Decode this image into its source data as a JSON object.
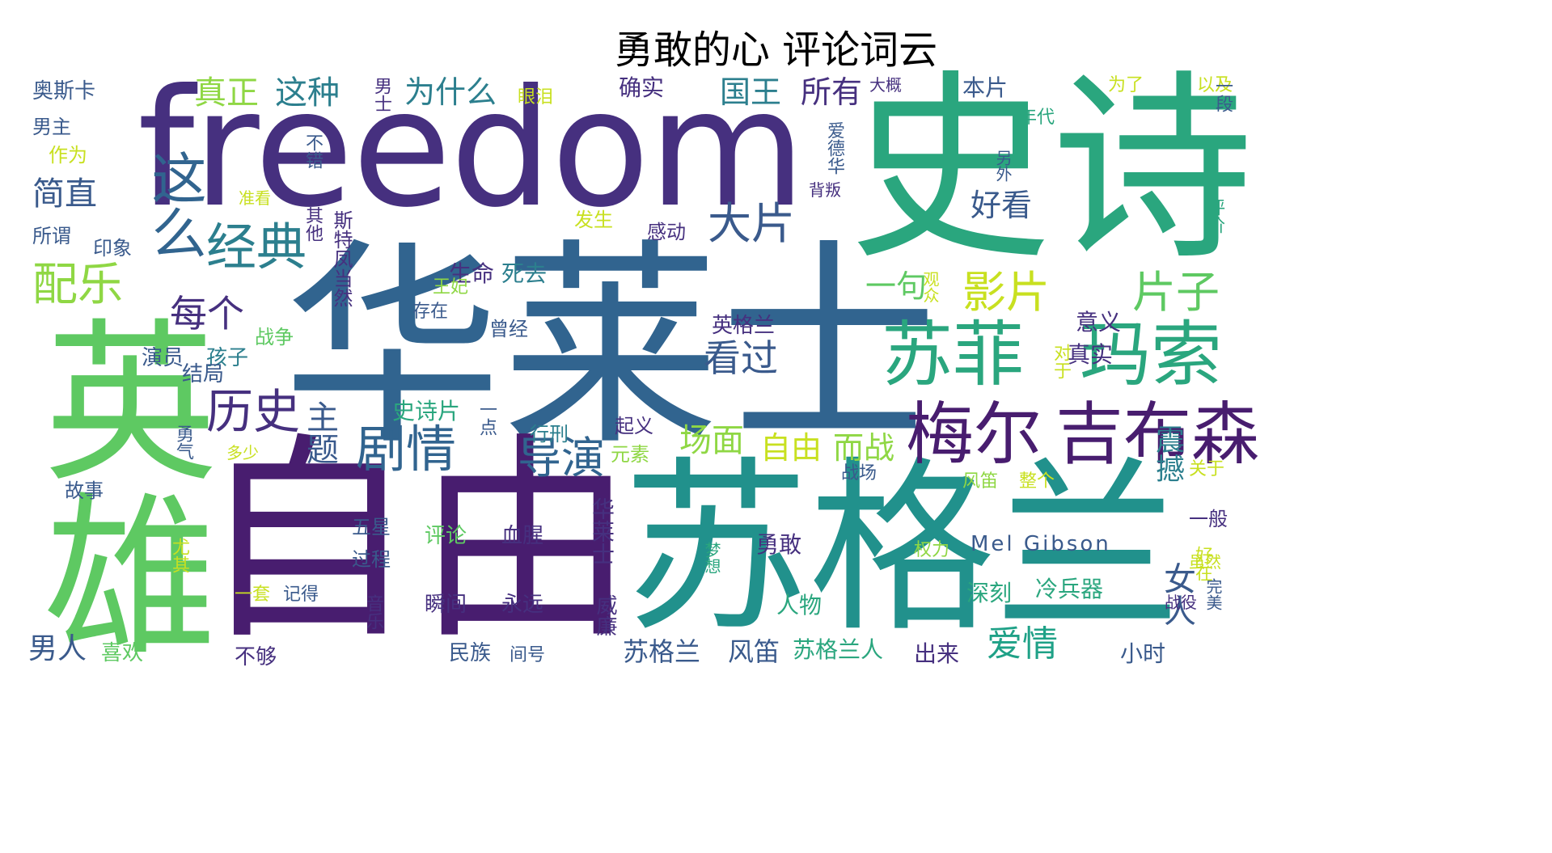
{
  "title": "勇敢的心 评论词云",
  "colors": {
    "dark_purple": "#46307f",
    "deep_purple": "#481d6f",
    "blue": "#31648f",
    "teal_blue": "#2c7f8e",
    "teal": "#21918c",
    "green_teal": "#1fa187",
    "green": "#2ab07f",
    "light_green": "#5ec962",
    "lime": "#8fd744",
    "yellow": "#c8e020",
    "bright_yellow": "#d6e21f"
  },
  "words": [
    {
      "text": "freedom",
      "color": "#46307f"
    },
    {
      "text": "史诗",
      "color": "#2aa67e"
    },
    {
      "text": "华莱士",
      "color": "#31648f"
    },
    {
      "text": "自由",
      "color": "#481d6f"
    },
    {
      "text": "苏格兰",
      "color": "#21918c"
    },
    {
      "text": "英雄",
      "color": "#5ec962"
    },
    {
      "text": "苏菲",
      "color": "#2aa67e"
    },
    {
      "text": "玛索",
      "color": "#2aa67e"
    },
    {
      "text": "梅尔",
      "color": "#481d6f"
    },
    {
      "text": "吉布森",
      "color": "#481d6f"
    },
    {
      "text": "这么",
      "color": "#31648f"
    },
    {
      "text": "经典",
      "color": "#2c7f8e"
    },
    {
      "text": "大片",
      "color": "#3a5a8c"
    },
    {
      "text": "历史",
      "color": "#46307f"
    },
    {
      "text": "剧情",
      "color": "#31648f"
    },
    {
      "text": "导演",
      "color": "#31648f"
    },
    {
      "text": "配乐",
      "color": "#8fd744"
    },
    {
      "text": "影片",
      "color": "#c8e020"
    },
    {
      "text": "片子",
      "color": "#5ec962"
    },
    {
      "text": "每个",
      "color": "#46307f"
    },
    {
      "text": "看过",
      "color": "#3a5a8c"
    },
    {
      "text": "场面",
      "color": "#8fd744"
    },
    {
      "text": "自由",
      "color": "#c8e020"
    },
    {
      "text": "而战",
      "color": "#8fd744"
    },
    {
      "text": "爱情",
      "color": "#1fa187"
    },
    {
      "text": "真正",
      "color": "#8fd744"
    },
    {
      "text": "这种",
      "color": "#2c7f8e"
    },
    {
      "text": "为什么",
      "color": "#2c7f8e"
    },
    {
      "text": "国王",
      "color": "#2c7f8e"
    },
    {
      "text": "所有",
      "color": "#46307f"
    },
    {
      "text": "简直",
      "color": "#3a5a8c"
    },
    {
      "text": "好看",
      "color": "#3a5a8c"
    },
    {
      "text": "一句",
      "color": "#5ec962"
    },
    {
      "text": "主题",
      "color": "#3a5a8c"
    },
    {
      "text": "奥斯卡",
      "color": "#3a5a8c"
    },
    {
      "text": "确实",
      "color": "#46307f"
    },
    {
      "text": "本片",
      "color": "#3a5a8c"
    },
    {
      "text": "男人",
      "color": "#3a5a8c"
    },
    {
      "text": "女人",
      "color": "#3a5a8c"
    },
    {
      "text": "震撼",
      "color": "#2c7f8e"
    },
    {
      "text": "苏格兰",
      "color": "#3a5a8c"
    },
    {
      "text": "风笛",
      "color": "#3a5a8c"
    },
    {
      "text": "苏格兰人",
      "color": "#2aa67e"
    },
    {
      "text": "Mel Gibson",
      "color": "#3a5a8c"
    },
    {
      "text": "冷兵器",
      "color": "#2aa67e"
    },
    {
      "text": "史诗片",
      "color": "#2aa67e"
    },
    {
      "text": "生命",
      "color": "#46307f"
    },
    {
      "text": "死去",
      "color": "#2c7f8e"
    },
    {
      "text": "英格兰",
      "color": "#46307f"
    },
    {
      "text": "意义",
      "color": "#46307f"
    },
    {
      "text": "真实",
      "color": "#46307f"
    },
    {
      "text": "人物",
      "color": "#2aa67e"
    },
    {
      "text": "勇敢",
      "color": "#46307f"
    },
    {
      "text": "深刻",
      "color": "#2aa67e"
    },
    {
      "text": "出来",
      "color": "#46307f"
    },
    {
      "text": "小时",
      "color": "#3a5a8c"
    },
    {
      "text": "评论",
      "color": "#5ec962"
    },
    {
      "text": "血腥",
      "color": "#46307f"
    },
    {
      "text": "瞬间",
      "color": "#46307f"
    },
    {
      "text": "永远",
      "color": "#46307f"
    },
    {
      "text": "民族",
      "color": "#3a5a8c"
    },
    {
      "text": "演员",
      "color": "#3a5a8c"
    },
    {
      "text": "孩子",
      "color": "#2c7f8e"
    },
    {
      "text": "男主",
      "color": "#3a5a8c"
    },
    {
      "text": "作为",
      "color": "#c8e020"
    },
    {
      "text": "所谓",
      "color": "#3a5a8c"
    },
    {
      "text": "印象",
      "color": "#3a5a8c"
    },
    {
      "text": "结局",
      "color": "#3a5a8c"
    },
    {
      "text": "战争",
      "color": "#5ec962"
    },
    {
      "text": "存在",
      "color": "#3a5a8c"
    },
    {
      "text": "曾经",
      "color": "#3a5a8c"
    },
    {
      "text": "王妃",
      "color": "#8fd744"
    },
    {
      "text": "感动",
      "color": "#46307f"
    },
    {
      "text": "发生",
      "color": "#c8e020"
    },
    {
      "text": "行刑",
      "color": "#2c7f8e"
    },
    {
      "text": "起义",
      "color": "#46307f"
    },
    {
      "text": "元素",
      "color": "#8fd744"
    },
    {
      "text": "故事",
      "color": "#3a5a8c"
    },
    {
      "text": "五星",
      "color": "#3a5a8c"
    },
    {
      "text": "过程",
      "color": "#3a5a8c"
    },
    {
      "text": "一套",
      "color": "#c8e020"
    },
    {
      "text": "记得",
      "color": "#3a5a8c"
    },
    {
      "text": "喜欢",
      "color": "#5ec962"
    },
    {
      "text": "不够",
      "color": "#46307f"
    },
    {
      "text": "以及",
      "color": "#c8e020"
    },
    {
      "text": "为了",
      "color": "#c8e020"
    },
    {
      "text": "年代",
      "color": "#2aa67e"
    },
    {
      "text": "眼泪",
      "color": "#c8e020"
    },
    {
      "text": "战场",
      "color": "#3a5a8c"
    },
    {
      "text": "权力",
      "color": "#8fd744"
    },
    {
      "text": "风笛",
      "color": "#8fd744"
    },
    {
      "text": "整个",
      "color": "#c8e020"
    },
    {
      "text": "关于",
      "color": "#c8e020"
    },
    {
      "text": "一般",
      "color": "#46307f"
    },
    {
      "text": "多少",
      "color": "#c8e020"
    },
    {
      "text": "大概",
      "color": "#46307f"
    },
    {
      "text": "不错",
      "color": "#3a5a8c"
    },
    {
      "text": "其他",
      "color": "#46307f"
    },
    {
      "text": "准看",
      "color": "#c8e020"
    },
    {
      "text": "间号",
      "color": "#3a5a8c"
    },
    {
      "text": "男士",
      "color": "#46307f"
    },
    {
      "text": "华莱士",
      "color": "#46307f"
    },
    {
      "text": "勇气",
      "color": "#3a5a8c"
    },
    {
      "text": "斯特凤当然",
      "color": "#46307f"
    },
    {
      "text": "一点",
      "color": "#3a5a8c"
    },
    {
      "text": "威廉",
      "color": "#46307f"
    },
    {
      "text": "音乐",
      "color": "#46307f"
    },
    {
      "text": "尤其",
      "color": "#c8e020"
    },
    {
      "text": "好在",
      "color": "#c8e020"
    },
    {
      "text": "对于",
      "color": "#c8e020"
    },
    {
      "text": "评价",
      "color": "#2aa67e"
    },
    {
      "text": "一段",
      "color": "#3a5a8c"
    },
    {
      "text": "背叛",
      "color": "#46307f"
    },
    {
      "text": "虽然",
      "color": "#c8e020"
    },
    {
      "text": "战役",
      "color": "#46307f"
    },
    {
      "text": "完美",
      "color": "#3a5a8c"
    },
    {
      "text": "梦想",
      "color": "#2aa67e"
    },
    {
      "text": "观众",
      "color": "#c8e020"
    },
    {
      "text": "爱德华",
      "color": "#3a5a8c"
    },
    {
      "text": "另外",
      "color": "#3a5a8c"
    }
  ]
}
